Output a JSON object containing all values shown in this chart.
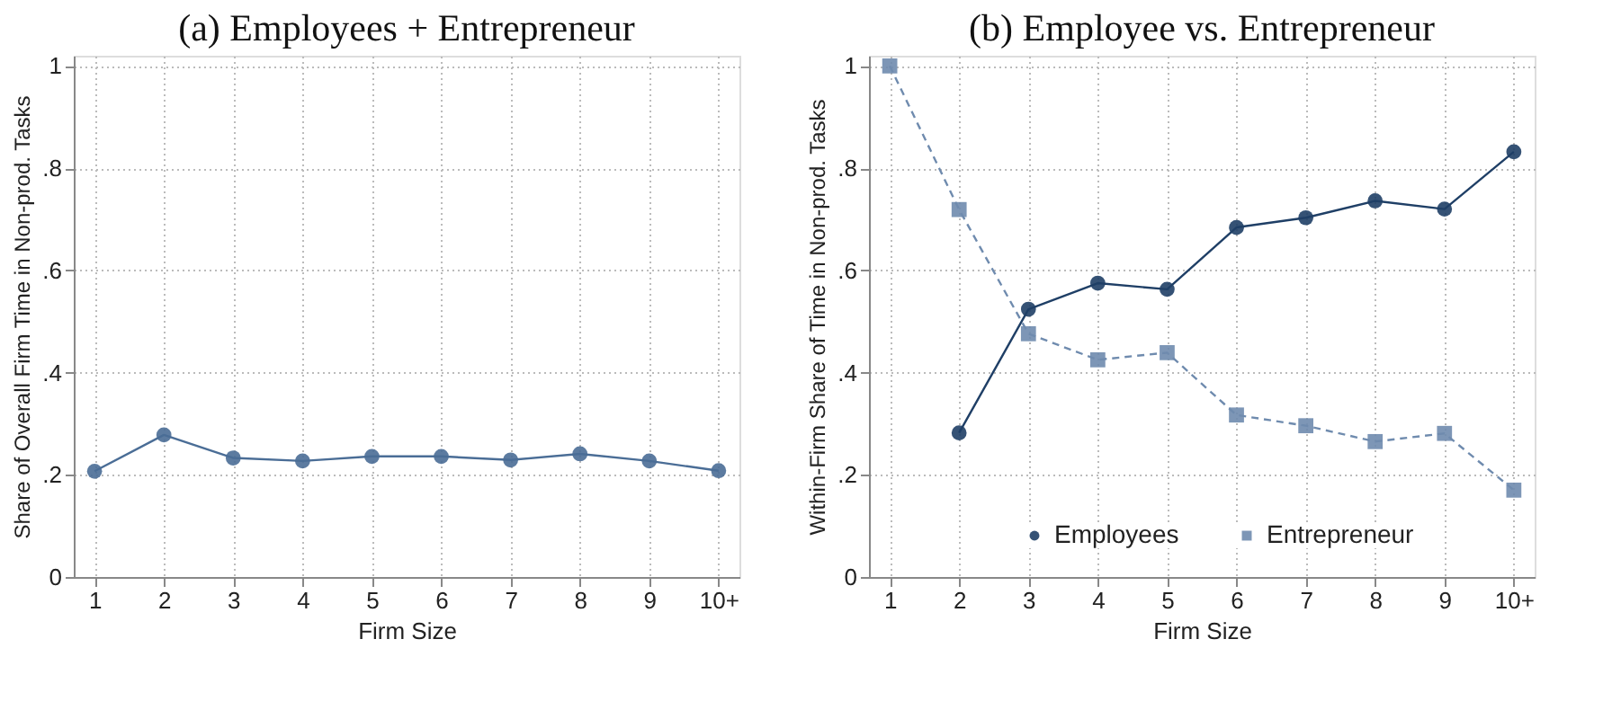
{
  "chart_data": [
    {
      "type": "line",
      "title": "(a) Employees + Entrepreneur",
      "xlabel": "Firm Size",
      "ylabel": "Share of Overall Firm Time in Non-prod. Tasks",
      "categories": [
        "1",
        "2",
        "3",
        "4",
        "5",
        "6",
        "7",
        "8",
        "9",
        "10+"
      ],
      "series": [
        {
          "color": "#4a6d96",
          "marker": "circle",
          "line_style": "solid",
          "values": [
            0.207,
            0.278,
            0.233,
            0.227,
            0.236,
            0.236,
            0.229,
            0.241,
            0.227,
            0.208
          ]
        }
      ],
      "ylim": [
        0,
        1.02
      ],
      "yticks": [
        0,
        {
          "value": 0.2,
          "label": ".2"
        },
        {
          "value": 0.4,
          "label": ".4"
        },
        {
          "value": 0.6,
          "label": ".6"
        },
        {
          "value": 0.8,
          "label": ".8"
        },
        1
      ],
      "grid": true,
      "legend": false
    },
    {
      "type": "line",
      "title": "(b) Employee vs. Entrepreneur",
      "xlabel": "Firm Size",
      "ylabel": "Within-Firm Share of Time in Non-prod. Tasks",
      "categories": [
        "1",
        "2",
        "3",
        "4",
        "5",
        "6",
        "7",
        "8",
        "9",
        "10+"
      ],
      "series": [
        {
          "name": "Employees",
          "color": "#1f3f66",
          "marker": "circle",
          "line_style": "solid",
          "values": [
            null,
            0.282,
            0.524,
            0.575,
            0.563,
            0.684,
            0.703,
            0.736,
            0.72,
            0.832
          ]
        },
        {
          "name": "Entrepreneur",
          "color": "#6f8bae",
          "marker": "square",
          "line_style": "dashed",
          "values": [
            1.0,
            0.719,
            0.476,
            0.425,
            0.439,
            0.317,
            0.296,
            0.265,
            0.281,
            0.17
          ]
        }
      ],
      "ylim": [
        0,
        1.02
      ],
      "yticks": [
        0,
        {
          "value": 0.2,
          "label": ".2"
        },
        {
          "value": 0.4,
          "label": ".4"
        },
        {
          "value": 0.6,
          "label": ".6"
        },
        {
          "value": 0.8,
          "label": ".8"
        },
        1
      ],
      "grid": true,
      "legend": "bottom"
    }
  ]
}
